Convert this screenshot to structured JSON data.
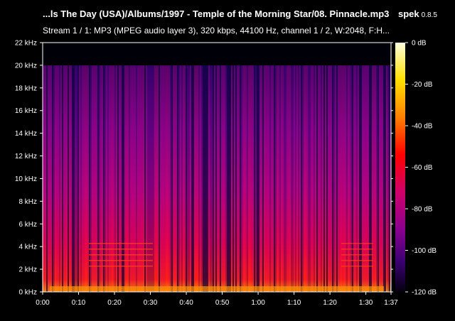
{
  "header": {
    "title": "...ls The Day (USA)/Albums/1997 - Temple of the Morning Star/08. Pinnacle.mp3",
    "app_name": "spek",
    "app_version": "0.8.5",
    "stream_info": "Stream 1 / 1: MP3 (MPEG audio layer 3), 320 kbps, 44100 Hz, channel 1 / 2, W:2048, F:H..."
  },
  "freq_axis": {
    "labels": [
      "22 kHz",
      "20 kHz",
      "18 kHz",
      "16 kHz",
      "14 kHz",
      "12 kHz",
      "10 kHz",
      "8 kHz",
      "6 kHz",
      "4 kHz",
      "2 kHz",
      "0 kHz"
    ]
  },
  "time_axis": {
    "labels": [
      "0:00",
      "0:10",
      "0:20",
      "0:30",
      "0:40",
      "0:50",
      "1:00",
      "1:10",
      "1:20",
      "1:30",
      "1:37"
    ],
    "values_sec": [
      0,
      10,
      20,
      30,
      40,
      50,
      60,
      70,
      80,
      90,
      97
    ]
  },
  "db_scale": {
    "labels": [
      "0 dB",
      "-20 dB",
      "-40 dB",
      "-60 dB",
      "-80 dB",
      "-100 dB",
      "-120 dB"
    ]
  },
  "colors": {
    "background": "#000000",
    "text": "#ffffff",
    "gradient": [
      "#ffffe0",
      "#ffe000",
      "#ff8000",
      "#ff0000",
      "#d0006a",
      "#8a0090",
      "#3a0070",
      "#050010"
    ]
  }
}
